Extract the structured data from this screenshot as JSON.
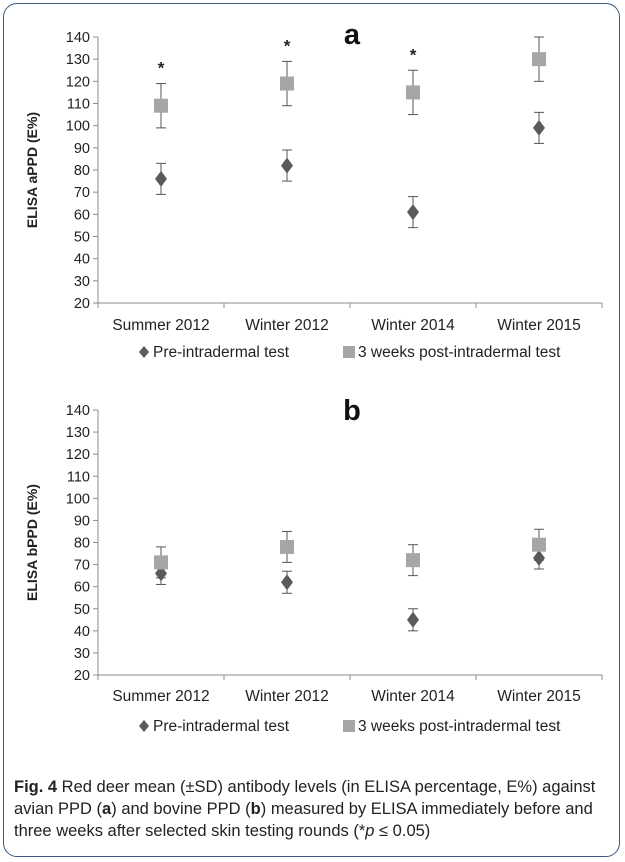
{
  "chart_data": [
    {
      "type": "scatter",
      "panel_label": "a",
      "title": "",
      "xlabel": "",
      "ylabel": "ELISA aPPD (E%)",
      "ylim": [
        20,
        140
      ],
      "ytick_step": 10,
      "grid": false,
      "categories": [
        "Summer 2012",
        "Winter 2012",
        "Winter 2014",
        "Winter 2015"
      ],
      "series": [
        {
          "name": "Pre-intradermal test",
          "marker": "diamond",
          "color": "#5a5a5a",
          "values": [
            76,
            82,
            61,
            99
          ],
          "sd": [
            7,
            7,
            7,
            7
          ]
        },
        {
          "name": "3 weeks post-intradermal test",
          "marker": "square",
          "color": "#a6a6a6",
          "values": [
            109,
            119,
            115,
            130
          ],
          "sd": [
            10,
            10,
            10,
            10
          ]
        }
      ],
      "annotations": [
        {
          "category": "Summer 2012",
          "text": "*"
        },
        {
          "category": "Winter 2012",
          "text": "*"
        },
        {
          "category": "Winter 2014",
          "text": "*"
        }
      ],
      "legend_position": "bottom"
    },
    {
      "type": "scatter",
      "panel_label": "b",
      "title": "",
      "xlabel": "",
      "ylabel": "ELISA bPPD (E%)",
      "ylim": [
        20,
        140
      ],
      "ytick_step": 10,
      "grid": false,
      "categories": [
        "Summer 2012",
        "Winter 2012",
        "Winter 2014",
        "Winter 2015"
      ],
      "series": [
        {
          "name": "Pre-intradermal test",
          "marker": "diamond",
          "color": "#5a5a5a",
          "values": [
            66,
            62,
            45,
            73
          ],
          "sd": [
            5,
            5,
            5,
            5
          ]
        },
        {
          "name": "3 weeks post-intradermal test",
          "marker": "square",
          "color": "#a6a6a6",
          "values": [
            71,
            78,
            72,
            79
          ],
          "sd": [
            7,
            7,
            7,
            7
          ]
        }
      ],
      "annotations": [],
      "legend_position": "bottom"
    }
  ],
  "caption": {
    "fig_label": "Fig. 4",
    "text_1": " Red deer mean (±SD) antibody levels (in ELISA percentage, E%) against avian PPD (",
    "a": "a",
    "text_2": ") and bovine PPD (",
    "b": "b",
    "text_3": ") measured by ELISA immediately before and three weeks after selected skin testing rounds (*",
    "p": "p",
    "text_4": " ≤ 0.05)"
  }
}
